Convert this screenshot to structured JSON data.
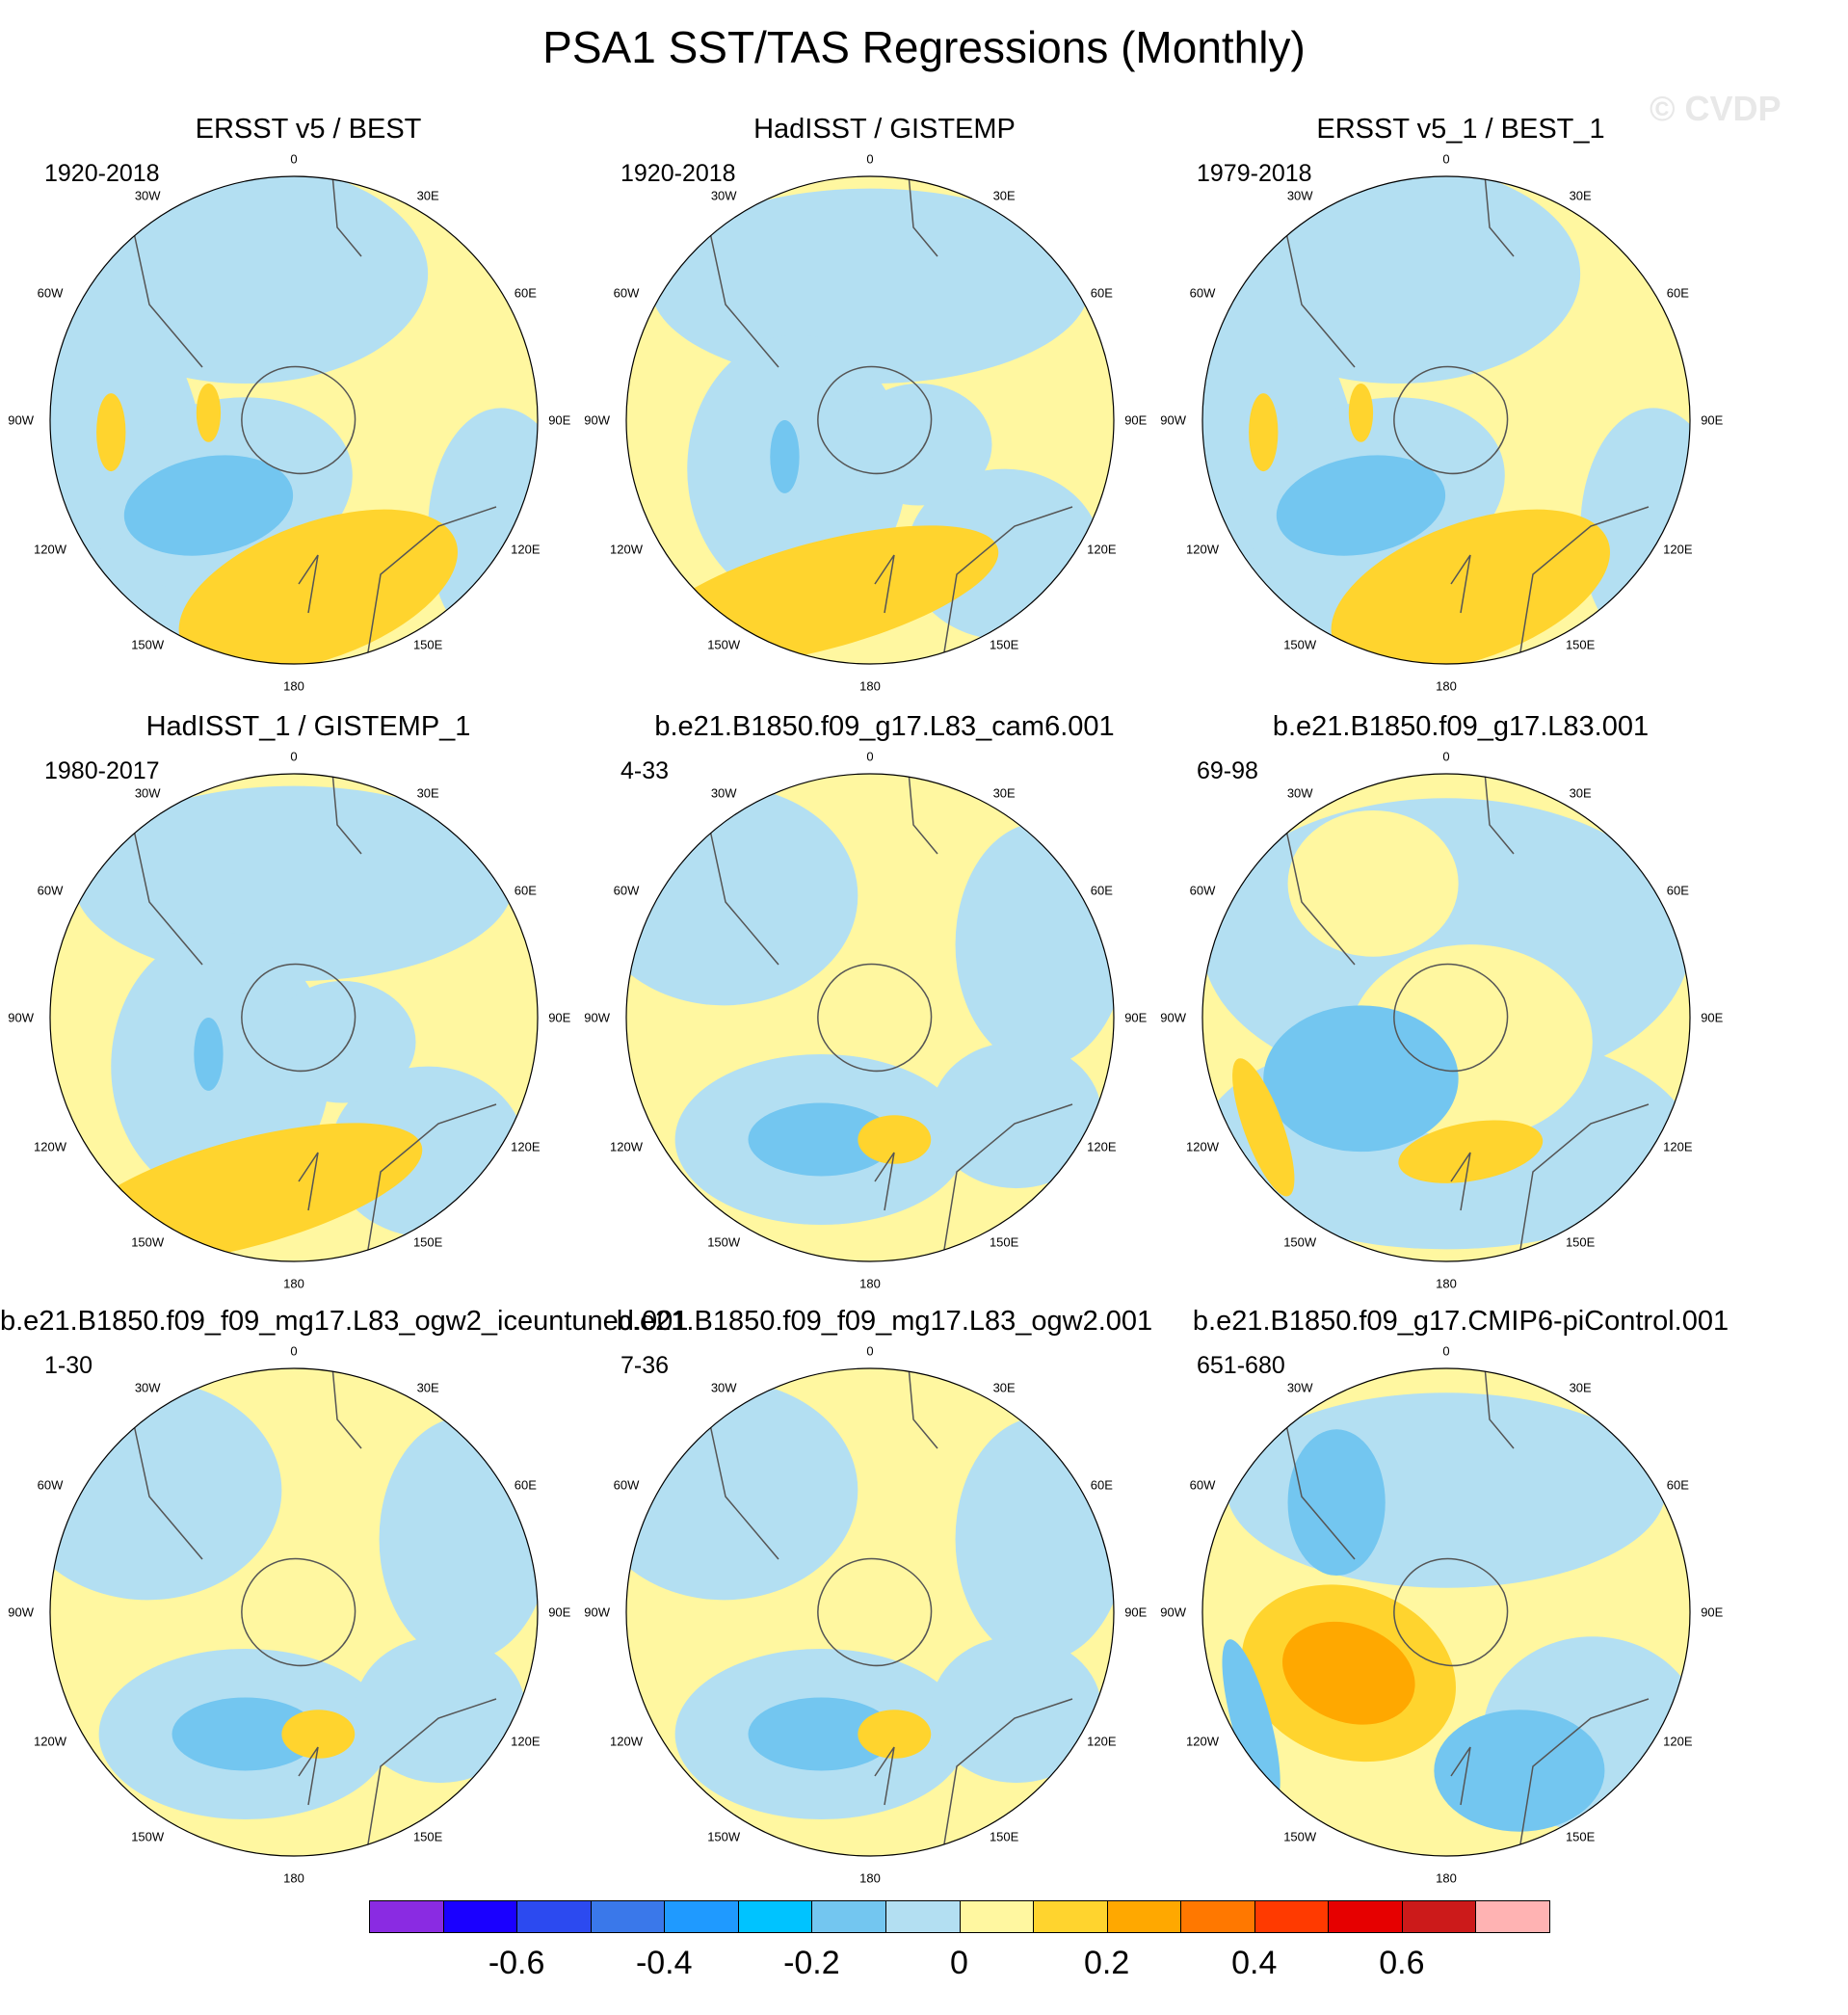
{
  "title": "PSA1 SST/TAS Regressions (Monthly)",
  "watermark": "© CVDP",
  "lon_labels": {
    "top": "0",
    "t30e": "30E",
    "t60e": "60E",
    "e90": "90E",
    "e120": "120E",
    "e150": "150E",
    "bottom": "180",
    "w150": "150W",
    "w120": "120W",
    "w90": "90W",
    "w60": "60W",
    "w30": "30W"
  },
  "panels": [
    {
      "title": "ERSST v5 / BEST",
      "period": "1920-2018",
      "pattern": 0
    },
    {
      "title": "HadISST / GISTEMP",
      "period": "1920-2018",
      "pattern": 1
    },
    {
      "title": "ERSST v5_1 / BEST_1",
      "period": "1979-2018",
      "pattern": 0
    },
    {
      "title": "HadISST_1 / GISTEMP_1",
      "period": "1980-2017",
      "pattern": 1
    },
    {
      "title": "b.e21.B1850.f09_g17.L83_cam6.001",
      "period": "4-33",
      "pattern": 2
    },
    {
      "title": "b.e21.B1850.f09_g17.L83.001",
      "period": "69-98",
      "pattern": 3
    },
    {
      "title": "b.e21.B1850.f09_f09_mg17.L83_ogw2_iceuntuned.001",
      "period": "1-30",
      "pattern": 2
    },
    {
      "title": "b.e21.B1850.f09_f09_mg17.L83_ogw2.001",
      "period": "7-36",
      "pattern": 2
    },
    {
      "title": "b.e21.B1850.f09_g17.CMIP6-piControl.001",
      "period": "651-680",
      "pattern": 4
    }
  ],
  "colorbar": {
    "colors": [
      "#8a2be2",
      "#1a00ff",
      "#2c4af0",
      "#3a78ea",
      "#1f9aff",
      "#00c3ff",
      "#73c6f0",
      "#b3dff2",
      "#fff7a0",
      "#ffd42e",
      "#ffa800",
      "#ff7800",
      "#ff3a00",
      "#e60000",
      "#cc1a1a",
      "#ffb3b3"
    ],
    "labels": [
      "-0.6",
      "-0.4",
      "-0.2",
      "0",
      "0.2",
      "0.4",
      "0.6"
    ],
    "label_values": [
      -0.6,
      -0.4,
      -0.2,
      0,
      0.2,
      0.4,
      0.6
    ],
    "min": -0.8,
    "max": 0.8
  }
}
